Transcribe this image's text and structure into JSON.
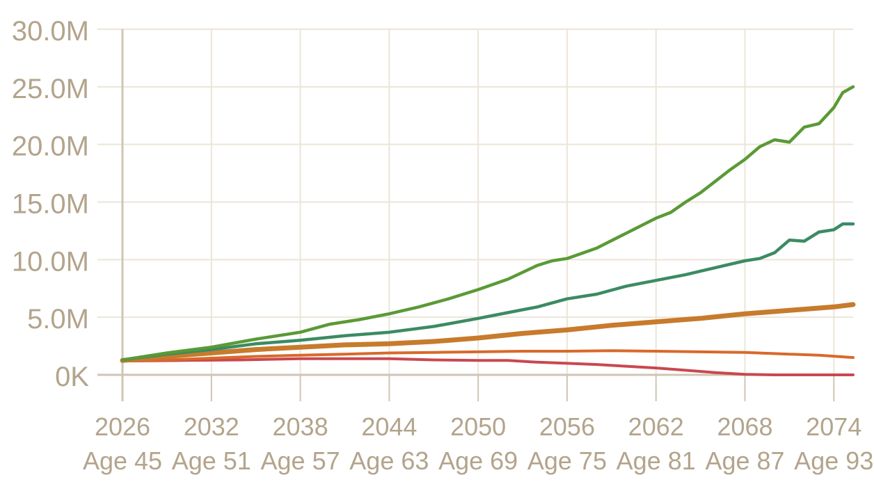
{
  "chart_data": {
    "type": "line",
    "title": "",
    "xlabel": "",
    "ylabel": "",
    "grid": true,
    "xlim": [
      2026,
      2075.3
    ],
    "ylim": [
      0,
      30000000
    ],
    "yticks": [
      {
        "value": 0,
        "label": "0K"
      },
      {
        "value": 5000000,
        "label": "5.0M"
      },
      {
        "value": 10000000,
        "label": "10.0M"
      },
      {
        "value": 15000000,
        "label": "15.0M"
      },
      {
        "value": 20000000,
        "label": "20.0M"
      },
      {
        "value": 25000000,
        "label": "25.0M"
      },
      {
        "value": 30000000,
        "label": "30.0M"
      }
    ],
    "xticks": [
      {
        "value": 2026,
        "label": "2026",
        "sublabel": "Age 45"
      },
      {
        "value": 2032,
        "label": "2032",
        "sublabel": "Age 51"
      },
      {
        "value": 2038,
        "label": "2038",
        "sublabel": "Age 57"
      },
      {
        "value": 2044,
        "label": "2044",
        "sublabel": "Age 63"
      },
      {
        "value": 2050,
        "label": "2050",
        "sublabel": "Age 69"
      },
      {
        "value": 2056,
        "label": "2056",
        "sublabel": "Age 75"
      },
      {
        "value": 2062,
        "label": "2062",
        "sublabel": "Age 81"
      },
      {
        "value": 2068,
        "label": "2068",
        "sublabel": "Age 87"
      },
      {
        "value": 2074,
        "label": "2074",
        "sublabel": "Age 93"
      }
    ],
    "series": [
      {
        "color": "#5a9a36",
        "width": 4.5,
        "points": [
          [
            2026,
            1300000
          ],
          [
            2029,
            1900000
          ],
          [
            2032,
            2400000
          ],
          [
            2035,
            3100000
          ],
          [
            2038,
            3700000
          ],
          [
            2040,
            4400000
          ],
          [
            2042,
            4800000
          ],
          [
            2044,
            5300000
          ],
          [
            2046,
            5900000
          ],
          [
            2048,
            6600000
          ],
          [
            2050,
            7400000
          ],
          [
            2052,
            8300000
          ],
          [
            2054,
            9500000
          ],
          [
            2055,
            9900000
          ],
          [
            2056,
            10100000
          ],
          [
            2058,
            11000000
          ],
          [
            2060,
            12300000
          ],
          [
            2062,
            13600000
          ],
          [
            2063,
            14100000
          ],
          [
            2064,
            15000000
          ],
          [
            2065,
            15800000
          ],
          [
            2066,
            16800000
          ],
          [
            2067,
            17800000
          ],
          [
            2068,
            18700000
          ],
          [
            2069,
            19800000
          ],
          [
            2070,
            20400000
          ],
          [
            2071,
            20200000
          ],
          [
            2072,
            21500000
          ],
          [
            2073,
            21800000
          ],
          [
            2074,
            23200000
          ],
          [
            2074.6,
            24500000
          ],
          [
            2075.3,
            25000000
          ]
        ]
      },
      {
        "color": "#3b8b62",
        "width": 4.5,
        "points": [
          [
            2026,
            1300000
          ],
          [
            2029,
            1800000
          ],
          [
            2032,
            2200000
          ],
          [
            2035,
            2700000
          ],
          [
            2038,
            3000000
          ],
          [
            2041,
            3400000
          ],
          [
            2044,
            3700000
          ],
          [
            2047,
            4200000
          ],
          [
            2050,
            4900000
          ],
          [
            2052,
            5400000
          ],
          [
            2054,
            5900000
          ],
          [
            2056,
            6600000
          ],
          [
            2058,
            7000000
          ],
          [
            2060,
            7700000
          ],
          [
            2062,
            8200000
          ],
          [
            2064,
            8700000
          ],
          [
            2066,
            9300000
          ],
          [
            2068,
            9900000
          ],
          [
            2069,
            10100000
          ],
          [
            2070,
            10600000
          ],
          [
            2071,
            11700000
          ],
          [
            2072,
            11600000
          ],
          [
            2073,
            12400000
          ],
          [
            2074,
            12600000
          ],
          [
            2074.6,
            13100000
          ],
          [
            2075.3,
            13100000
          ]
        ]
      },
      {
        "color": "#c77b2c",
        "width": 7,
        "points": [
          [
            2026,
            1250000
          ],
          [
            2029,
            1600000
          ],
          [
            2032,
            1900000
          ],
          [
            2035,
            2200000
          ],
          [
            2038,
            2400000
          ],
          [
            2041,
            2600000
          ],
          [
            2044,
            2700000
          ],
          [
            2047,
            2900000
          ],
          [
            2050,
            3200000
          ],
          [
            2053,
            3600000
          ],
          [
            2056,
            3900000
          ],
          [
            2059,
            4300000
          ],
          [
            2062,
            4600000
          ],
          [
            2065,
            4900000
          ],
          [
            2068,
            5300000
          ],
          [
            2071,
            5600000
          ],
          [
            2072,
            5700000
          ],
          [
            2074,
            5900000
          ],
          [
            2075.3,
            6100000
          ]
        ]
      },
      {
        "color": "#d8692a",
        "width": 4,
        "points": [
          [
            2026,
            1200000
          ],
          [
            2029,
            1300000
          ],
          [
            2032,
            1450000
          ],
          [
            2035,
            1600000
          ],
          [
            2038,
            1700000
          ],
          [
            2041,
            1800000
          ],
          [
            2044,
            1900000
          ],
          [
            2047,
            1950000
          ],
          [
            2050,
            2000000
          ],
          [
            2053,
            2050000
          ],
          [
            2056,
            2050000
          ],
          [
            2059,
            2100000
          ],
          [
            2062,
            2050000
          ],
          [
            2065,
            2000000
          ],
          [
            2068,
            1950000
          ],
          [
            2071,
            1800000
          ],
          [
            2073,
            1700000
          ],
          [
            2075.3,
            1500000
          ]
        ]
      },
      {
        "color": "#c9484f",
        "width": 4,
        "points": [
          [
            2026,
            1200000
          ],
          [
            2030,
            1250000
          ],
          [
            2034,
            1300000
          ],
          [
            2038,
            1400000
          ],
          [
            2041,
            1400000
          ],
          [
            2044,
            1400000
          ],
          [
            2047,
            1300000
          ],
          [
            2050,
            1250000
          ],
          [
            2052,
            1250000
          ],
          [
            2054,
            1100000
          ],
          [
            2056,
            1000000
          ],
          [
            2058,
            900000
          ],
          [
            2060,
            750000
          ],
          [
            2062,
            600000
          ],
          [
            2064,
            400000
          ],
          [
            2066,
            200000
          ],
          [
            2068,
            50000
          ],
          [
            2070,
            0
          ],
          [
            2075.3,
            0
          ]
        ]
      }
    ]
  },
  "colors": {
    "grid": "#ece5d8",
    "axis": "#cfc5b4",
    "tick_text": "#b3a48c"
  }
}
